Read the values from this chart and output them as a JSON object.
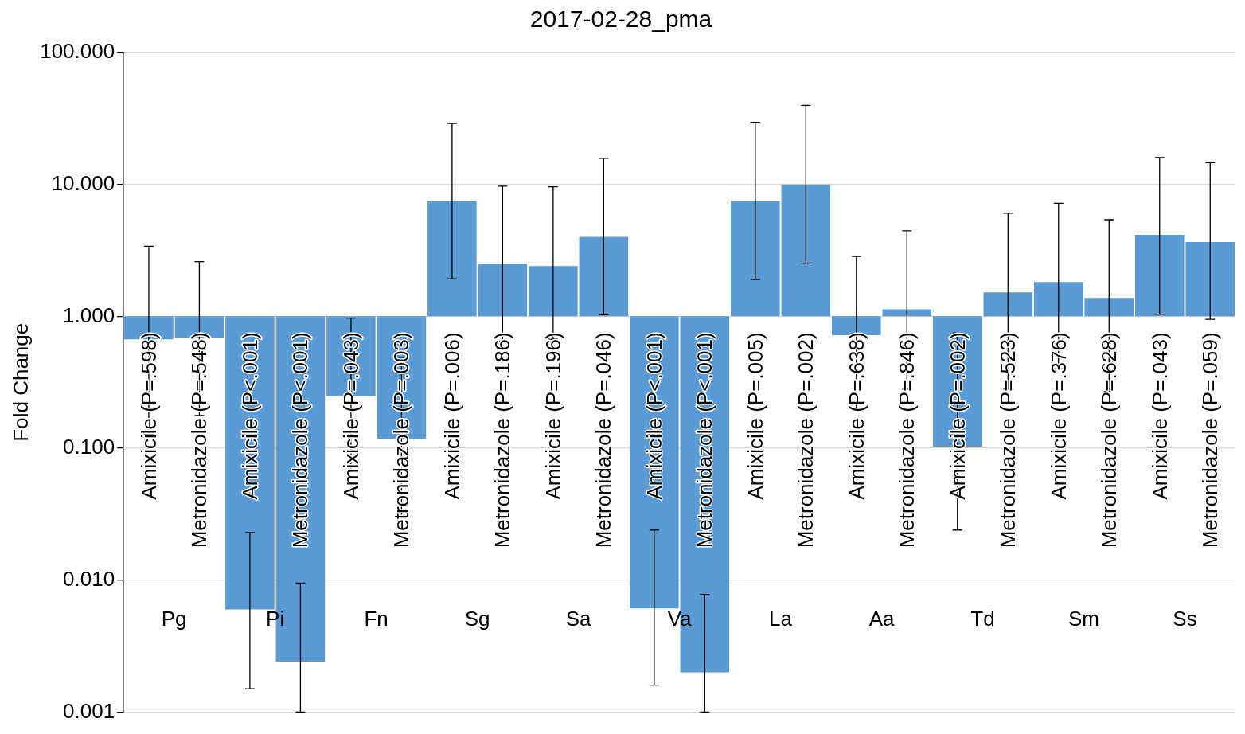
{
  "chart_data": {
    "type": "bar",
    "title": "2017-02-28_pma",
    "ylabel": "Fold Change",
    "categories": [
      "Amixicile (P=.598)",
      "Metronidazole (P=.548)",
      "Amixicile (P<.001)",
      "Metronidazole (P<.001)",
      "Amixicile (P=.043)",
      "Metronidazole (P=.003)",
      "Amixicile (P=.006)",
      "Metronidazole (P=.186)",
      "Amixicile (P=.196)",
      "Metronidazole (P=.046)",
      "Amixicile (P<.001)",
      "Metronidazole (P<.001)",
      "Amixicile (P=.005)",
      "Metronidazole (P=.002)",
      "Amixicile (P=.638)",
      "Metronidazole (P=.846)",
      "Amixicile (P=.002)",
      "Metronidazole (P=.523)",
      "Amixicile (P=.376)",
      "Metronidazole (P=.628)",
      "Amixicile (P=.043)",
      "Metronidazole (P=.059)"
    ],
    "values": [
      -0.33,
      -0.31,
      -0.994,
      -0.9976,
      -0.75,
      -0.882,
      6.5,
      1.5,
      1.4,
      3.0,
      -0.9939,
      -0.998,
      6.5,
      9,
      -0.28,
      0.13,
      -0.897,
      0.52,
      0.82,
      0.38,
      3.15,
      2.66
    ],
    "base": [
      1,
      1,
      1,
      1,
      1,
      1,
      1,
      1,
      1,
      1,
      1,
      1,
      1,
      1,
      1,
      1,
      1,
      1,
      1,
      1,
      1,
      1
    ],
    "errors": [
      [
        0.128,
        3.4
      ],
      [
        0.177,
        2.6
      ],
      [
        0.0015,
        0.023
      ],
      [
        0.001,
        0.0095
      ],
      [
        0.066,
        0.97
      ],
      [
        0.031,
        0.48
      ],
      [
        1.93,
        29
      ],
      [
        0.65,
        9.7
      ],
      [
        0.67,
        9.6
      ],
      [
        1.03,
        15.8
      ],
      [
        0.0016,
        0.024
      ],
      [
        0.001,
        0.0078
      ],
      [
        1.9,
        29.6
      ],
      [
        2.5,
        39.8
      ],
      [
        0.2,
        2.85
      ],
      [
        0.28,
        4.45
      ],
      [
        0.024,
        0.75
      ],
      [
        0.28,
        6.05
      ],
      [
        0.4,
        7.2
      ],
      [
        0.27,
        5.4
      ],
      [
        1.04,
        16
      ],
      [
        0.95,
        14.6
      ]
    ],
    "color": "#5b9bd5",
    "log": true,
    "ylim": [
      0.001,
      100
    ],
    "yticks": [
      {
        "value": 0.001,
        "label": "0.001"
      },
      {
        "value": 0.01,
        "label": "0.010"
      },
      {
        "value": 0.1,
        "label": "0.100"
      },
      {
        "value": 1,
        "label": "1.000"
      },
      {
        "value": 10,
        "label": "10.000"
      },
      {
        "value": 100,
        "label": "100.000"
      }
    ],
    "annotations": [
      "Pg",
      "Pi",
      "Fn",
      "Sg",
      "Sa",
      "Va",
      "La",
      "Aa",
      "Td",
      "Sm",
      "Ss"
    ],
    "grid": "y",
    "legend": false
  }
}
